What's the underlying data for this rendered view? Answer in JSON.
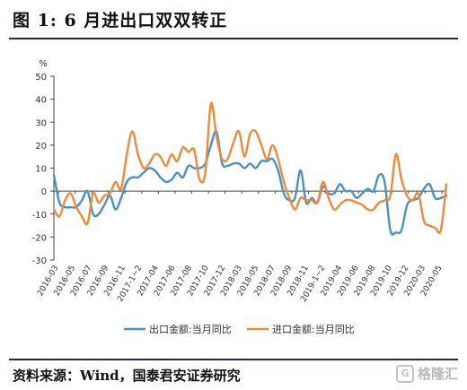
{
  "header": {
    "title": "图 1: 6 月进出口双双转正"
  },
  "footer": {
    "source": "资料来源：Wind，国泰君安证券研究",
    "logo_text": "格隆汇",
    "logo_mark": "G"
  },
  "chart_data": {
    "type": "line",
    "title": "图 1: 6 月进出口双双转正",
    "xlabel": "",
    "ylabel": "%",
    "ylim": [
      -30,
      50
    ],
    "yticks": [
      -30,
      -20,
      -10,
      0,
      10,
      20,
      30,
      40,
      50
    ],
    "x_tick_labels": [
      "2016-03",
      "2016-05",
      "2016-07",
      "2016-09",
      "2016-11",
      "2017-1~2",
      "2017-04",
      "2017-06",
      "2017-08",
      "2017-10",
      "2017-12",
      "2018-03",
      "2018-05",
      "2018-07",
      "2018-09",
      "2018-11",
      "2019-1~2",
      "2019-04",
      "2019-06",
      "2019-08",
      "2019-10",
      "2019-12",
      "2020-03",
      "2020-05"
    ],
    "legend_position": "bottom-center",
    "grid": false,
    "series": [
      {
        "name": "出口金额:当月同比",
        "color": "#4a90c8",
        "values": [
          7,
          -5,
          -7,
          -7,
          -7,
          -4,
          0,
          -10,
          -10,
          -6,
          -2,
          -8,
          -3,
          4,
          6,
          6,
          8,
          10,
          9,
          6,
          4,
          5,
          8,
          6,
          11,
          10,
          10,
          12,
          20,
          26,
          12,
          11,
          12,
          12,
          10,
          12,
          10,
          13,
          13,
          14,
          9,
          -1,
          -4,
          -3,
          9,
          -5,
          -3,
          -5,
          2,
          -1,
          -1,
          3,
          0,
          0,
          -3,
          -1,
          1,
          0,
          7,
          4,
          -17,
          -18,
          -17,
          -6,
          -4,
          -3,
          1,
          3,
          -3,
          -3,
          -2
        ]
      },
      {
        "name": "进口金额:当月同比",
        "color": "#ee8a3c",
        "values": [
          -8,
          -11,
          -4,
          -1,
          -7,
          -11,
          -14,
          -1,
          -5,
          -2,
          -1,
          4,
          1,
          16,
          26,
          16,
          10,
          12,
          16,
          15,
          11,
          16,
          13,
          19,
          17,
          18,
          5,
          8,
          38,
          24,
          14,
          14,
          21,
          26,
          15,
          25,
          26,
          20,
          14,
          20,
          14,
          4,
          -3,
          -8,
          -3,
          -4,
          -4,
          -5,
          4,
          -3,
          -8,
          -6,
          -4,
          -4,
          -5,
          -6,
          -8,
          -8,
          -5,
          -4,
          -2,
          16,
          5,
          -2,
          -4,
          -1,
          -13,
          -15,
          -16,
          -17,
          3
        ]
      }
    ]
  }
}
